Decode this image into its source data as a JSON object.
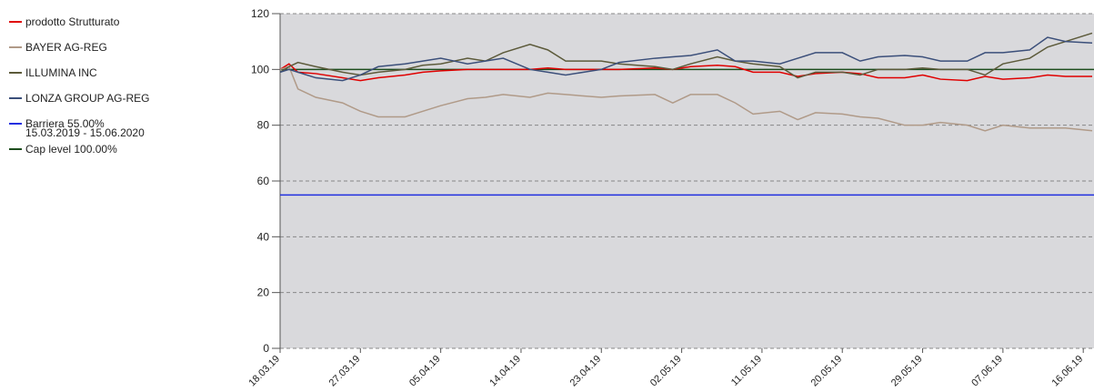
{
  "chart_data": {
    "type": "line",
    "x": [
      "18.03.19",
      "19.03.19",
      "20.03.19",
      "22.03.19",
      "25.03.19",
      "27.03.19",
      "29.03.19",
      "01.04.19",
      "03.04.19",
      "05.04.19",
      "08.04.19",
      "10.04.19",
      "12.04.19",
      "15.04.19",
      "17.04.19",
      "19.04.19",
      "23.04.19",
      "25.04.19",
      "29.04.19",
      "01.05.19",
      "03.05.19",
      "06.05.19",
      "08.05.19",
      "10.05.19",
      "13.05.19",
      "15.05.19",
      "17.05.19",
      "20.05.19",
      "22.05.19",
      "24.05.19",
      "27.05.19",
      "29.05.19",
      "31.05.19",
      "03.06.19",
      "05.06.19",
      "07.06.19",
      "10.06.19",
      "12.06.19",
      "14.06.19",
      "17.06.19"
    ],
    "series": [
      {
        "name": "prodotto Strutturato",
        "color": "#e00000",
        "values": [
          100,
          102,
          99,
          98.5,
          97,
          96,
          97,
          98,
          99,
          99.5,
          100,
          100,
          100,
          100,
          100.5,
          100,
          100,
          100,
          100.5,
          100,
          101,
          101.5,
          101,
          99,
          99,
          97.5,
          98.5,
          99,
          98.5,
          97,
          97,
          98,
          96.5,
          96,
          97.5,
          96.5,
          97,
          98,
          97.5,
          97.5
        ]
      },
      {
        "name": "BAYER AG-REG",
        "color": "#b09a88",
        "values": [
          100,
          101,
          93,
          90,
          88,
          85,
          83,
          83,
          85,
          87,
          89.5,
          90,
          91,
          90,
          91.5,
          91,
          90,
          90.5,
          91,
          88,
          91,
          91,
          88,
          84,
          85,
          82,
          84.5,
          84,
          83,
          82.5,
          80,
          80,
          81,
          80,
          78,
          80,
          79,
          79,
          79,
          78
        ]
      },
      {
        "name": "ILLUMINA INC",
        "color": "#5c5a3a",
        "values": [
          99,
          101,
          102.5,
          101,
          99,
          98,
          99,
          100,
          101.5,
          102,
          104,
          103,
          106,
          109,
          107,
          103,
          103,
          102,
          101,
          100,
          102,
          104.5,
          103,
          102,
          101,
          97,
          99,
          99,
          98,
          100,
          100,
          100.5,
          100,
          100,
          98,
          102,
          104,
          108,
          110,
          113
        ]
      },
      {
        "name": "LONZA GROUP AG-REG",
        "color": "#3b4f7a",
        "values": [
          99,
          100,
          99,
          97,
          96,
          98,
          101,
          102,
          103,
          104,
          102,
          103,
          104,
          100,
          99,
          98,
          100,
          102.5,
          104,
          104.5,
          105,
          107,
          103,
          103,
          102,
          104,
          106,
          106,
          103,
          104.5,
          105,
          104.5,
          103,
          103,
          106,
          106,
          107,
          111.5,
          110,
          109.5
        ]
      }
    ],
    "reference_lines": [
      {
        "name": "Barriera 55.00%",
        "period": "15.03.2019 - 15.06.2020",
        "value": 55,
        "color": "#1f2fe0"
      },
      {
        "name": "Cap level 100.00%",
        "value": 100,
        "color": "#1d4d1d"
      }
    ],
    "xlim": [
      "18.03.19",
      "17.06.19"
    ],
    "xticks": [
      "18.03.19",
      "27.03.19",
      "05.04.19",
      "14.04.19",
      "23.04.19",
      "02.05.19",
      "11.05.19",
      "20.05.19",
      "29.05.19",
      "07.06.19",
      "16.06.19"
    ],
    "ylim": [
      0,
      120
    ],
    "yticks": [
      0,
      20,
      40,
      60,
      80,
      100,
      120
    ],
    "grid": true
  }
}
